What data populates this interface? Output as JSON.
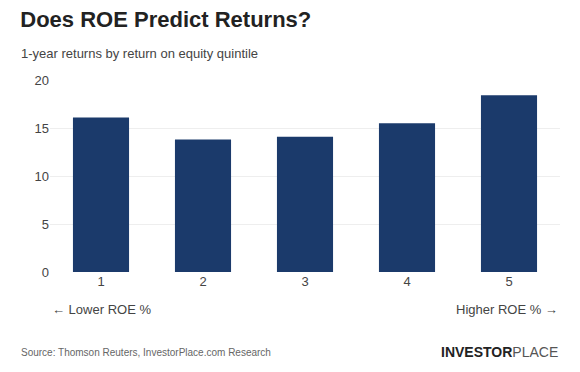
{
  "chart_data": {
    "type": "bar",
    "title": "Does ROE Predict Returns?",
    "subtitle": "1-year returns by return on equity quintile",
    "categories": [
      "1",
      "2",
      "3",
      "4",
      "5"
    ],
    "values": [
      16.1,
      13.8,
      14.1,
      15.5,
      18.4
    ],
    "color": "#1b3a6b",
    "ylim": [
      0,
      20
    ],
    "yticks": [
      0,
      5,
      10,
      15,
      20
    ],
    "grid": true,
    "xlabel_left": "← Lower ROE %",
    "xlabel_right": "Higher ROE % →",
    "source": "Source: Thomson Reuters, InvestorPlace.com Research",
    "annotations": [
      "INVESTOR",
      "PLACE"
    ]
  }
}
